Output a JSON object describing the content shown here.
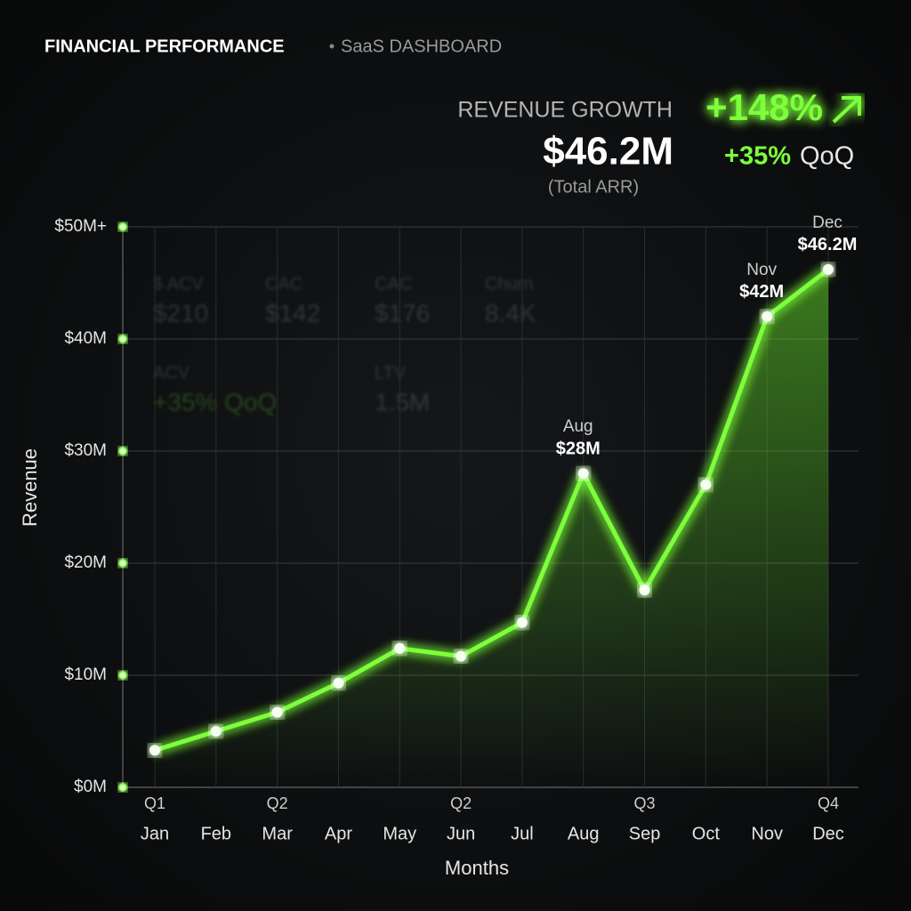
{
  "header": {
    "title": "FINANCIAL PERFORMANCE",
    "subtitle": "SaaS DASHBOARD"
  },
  "kpi": {
    "label": "REVENUE GROWTH",
    "growth": "+148%",
    "value": "$46.2M",
    "note": "(Total ARR)",
    "qoq_value": "+35%",
    "qoq_label": "QoQ"
  },
  "background_cards": [
    {
      "label": "$ ACV",
      "value": "$210"
    },
    {
      "label": "CAC",
      "value": "$142"
    },
    {
      "label": "CAC",
      "value": "$176"
    },
    {
      "label": "Churn",
      "value": "8.4K"
    },
    {
      "label": "ACV",
      "value": "+35% QoQ"
    },
    {
      "label": "LTV",
      "value": "1.5M"
    }
  ],
  "chart_data": {
    "type": "line",
    "x_label": "Months",
    "y_label": "Revenue",
    "categories": [
      "Jan",
      "Feb",
      "Mar",
      "Apr",
      "May",
      "Jun",
      "Jul",
      "Aug",
      "Sep",
      "Oct",
      "Nov",
      "Dec"
    ],
    "quarter_labels": [
      "Q1",
      null,
      "Q2",
      null,
      null,
      "Q2",
      null,
      null,
      "Q3",
      null,
      null,
      "Q4"
    ],
    "series": [
      {
        "name": "Revenue",
        "color": "#7dff3a",
        "values": [
          3.3,
          5.0,
          6.7,
          9.3,
          12.4,
          11.7,
          14.7,
          28,
          17.6,
          27.0,
          42,
          46.2
        ],
        "value_labels": [
          null,
          null,
          null,
          null,
          null,
          null,
          null,
          "$28M",
          null,
          null,
          "$42M",
          "$46.2M"
        ]
      }
    ],
    "ylim": [
      0,
      50
    ],
    "yticks": [
      {
        "value": 0,
        "label": "$0M"
      },
      {
        "value": 10,
        "label": "$10M"
      },
      {
        "value": 20,
        "label": "$20M"
      },
      {
        "value": 30,
        "label": "$30M"
      },
      {
        "value": 40,
        "label": "$40M"
      },
      {
        "value": 50,
        "label": "$50M+"
      }
    ],
    "grid": true
  }
}
